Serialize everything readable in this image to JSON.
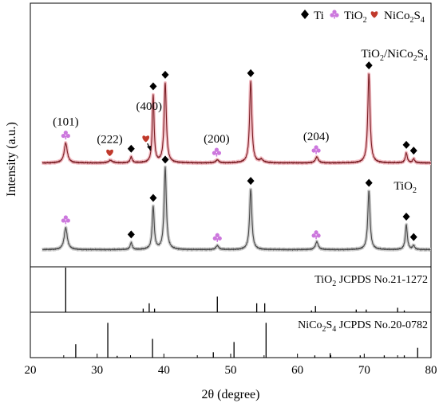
{
  "chart_data": {
    "type": "line",
    "xlabel": "2θ (degree)",
    "ylabel": "Intensity (a.u.)",
    "xlim": [
      20,
      80
    ],
    "x_ticks": [
      20,
      30,
      40,
      50,
      60,
      70,
      80
    ],
    "grid": false,
    "legend": {
      "position": "top-right",
      "entries": [
        {
          "name": "Ti",
          "marker": "diamond",
          "color": "#000000"
        },
        {
          "name": "TiO",
          "sub": "2",
          "marker": "club",
          "color": "#cc77dd"
        },
        {
          "name": "NiCo",
          "sub": "2",
          "tail": "S",
          "sub2": "4",
          "marker": "heart",
          "color": "#c0392b"
        }
      ]
    },
    "series": [
      {
        "name": "TiO2/NiCo2S4",
        "label": {
          "base": "TiO",
          "s1": "2",
          "mid": "/NiCo",
          "s2": "2",
          "mid2": "S",
          "s3": "4"
        },
        "color": "#7a1f25",
        "halo": "#f2bcc3",
        "baseline": 0.035,
        "peaks": [
          {
            "x": 25.3,
            "h": 0.2,
            "w": 0.28
          },
          {
            "x": 32.0,
            "h": 0.025,
            "w": 0.35
          },
          {
            "x": 35.1,
            "h": 0.06,
            "w": 0.18
          },
          {
            "x": 38.4,
            "h": 0.68,
            "w": 0.16
          },
          {
            "x": 40.2,
            "h": 0.8,
            "w": 0.2
          },
          {
            "x": 48.0,
            "h": 0.03,
            "w": 0.25
          },
          {
            "x": 53.0,
            "h": 0.82,
            "w": 0.2
          },
          {
            "x": 54.6,
            "h": 0.03,
            "w": 0.3
          },
          {
            "x": 62.9,
            "h": 0.06,
            "w": 0.25
          },
          {
            "x": 70.7,
            "h": 0.9,
            "w": 0.2
          },
          {
            "x": 76.3,
            "h": 0.1,
            "w": 0.18
          },
          {
            "x": 77.4,
            "h": 0.04,
            "w": 0.18
          }
        ]
      },
      {
        "name": "TiO2",
        "label": {
          "base": "TiO",
          "s1": "2"
        },
        "color": "#4a4a4a",
        "halo": "#cfcfcf",
        "baseline": 0.02,
        "peaks": [
          {
            "x": 25.3,
            "h": 0.22,
            "w": 0.28
          },
          {
            "x": 35.1,
            "h": 0.07,
            "w": 0.18
          },
          {
            "x": 38.4,
            "h": 0.43,
            "w": 0.18
          },
          {
            "x": 40.2,
            "h": 0.82,
            "w": 0.2
          },
          {
            "x": 48.0,
            "h": 0.04,
            "w": 0.25
          },
          {
            "x": 53.0,
            "h": 0.61,
            "w": 0.2
          },
          {
            "x": 62.9,
            "h": 0.08,
            "w": 0.25
          },
          {
            "x": 70.7,
            "h": 0.59,
            "w": 0.2
          },
          {
            "x": 76.3,
            "h": 0.25,
            "w": 0.18
          },
          {
            "x": 77.4,
            "h": 0.04,
            "w": 0.18
          }
        ]
      }
    ],
    "markers": [
      {
        "series": 0,
        "type": "club",
        "x": 25.3,
        "label": "(101)"
      },
      {
        "series": 0,
        "type": "heart",
        "x": 31.9,
        "label": "(222)"
      },
      {
        "series": 0,
        "type": "diamond",
        "x": 35.1
      },
      {
        "series": 0,
        "type": "heart",
        "x": 37.3,
        "label": "(400)",
        "arrow_to": 38.0
      },
      {
        "series": 0,
        "type": "diamond",
        "x": 38.4
      },
      {
        "series": 0,
        "type": "diamond",
        "x": 40.2
      },
      {
        "series": 0,
        "type": "club",
        "x": 47.9,
        "label": "(200)"
      },
      {
        "series": 0,
        "type": "diamond",
        "x": 53.0
      },
      {
        "series": 0,
        "type": "club",
        "x": 62.8,
        "label": "(204)"
      },
      {
        "series": 0,
        "type": "diamond",
        "x": 70.7
      },
      {
        "series": 0,
        "type": "diamond",
        "x": 76.3
      },
      {
        "series": 0,
        "type": "diamond",
        "x": 77.4
      },
      {
        "series": 1,
        "type": "club",
        "x": 25.3
      },
      {
        "series": 1,
        "type": "diamond",
        "x": 35.1
      },
      {
        "series": 1,
        "type": "diamond",
        "x": 38.4
      },
      {
        "series": 1,
        "type": "diamond",
        "x": 40.2
      },
      {
        "series": 1,
        "type": "club",
        "x": 48.0
      },
      {
        "series": 1,
        "type": "diamond",
        "x": 53.0
      },
      {
        "series": 1,
        "type": "club",
        "x": 62.8
      },
      {
        "series": 1,
        "type": "diamond",
        "x": 70.7
      },
      {
        "series": 1,
        "type": "diamond",
        "x": 76.3
      },
      {
        "series": 1,
        "type": "diamond",
        "x": 77.4
      }
    ],
    "references": [
      {
        "name": "TiO2 JCPDS No.21-1272",
        "label": {
          "base": "TiO",
          "s1": "2",
          "rest": " JCPDS No.21-1272"
        },
        "lines": [
          {
            "x": 25.3,
            "h": 1.0
          },
          {
            "x": 36.9,
            "h": 0.08
          },
          {
            "x": 37.8,
            "h": 0.2
          },
          {
            "x": 38.6,
            "h": 0.08
          },
          {
            "x": 48.0,
            "h": 0.35
          },
          {
            "x": 53.9,
            "h": 0.2
          },
          {
            "x": 55.1,
            "h": 0.2
          },
          {
            "x": 62.1,
            "h": 0.04
          },
          {
            "x": 62.7,
            "h": 0.14
          },
          {
            "x": 68.8,
            "h": 0.06
          },
          {
            "x": 70.3,
            "h": 0.06
          },
          {
            "x": 75.0,
            "h": 0.1
          },
          {
            "x": 76.0,
            "h": 0.04
          }
        ]
      },
      {
        "name": "NiCo2S4 JCPDS No.20-0782",
        "label": {
          "base": "NiCo",
          "s1": "2",
          "mid": "S",
          "s2": "4",
          "rest": " JCPDS No.20-0782"
        },
        "lines": [
          {
            "x": 16.3,
            "h": 0.15
          },
          {
            "x": 26.8,
            "h": 0.3
          },
          {
            "x": 31.6,
            "h": 0.78
          },
          {
            "x": 33.0,
            "h": 0.04
          },
          {
            "x": 38.3,
            "h": 0.42
          },
          {
            "x": 47.4,
            "h": 0.12
          },
          {
            "x": 50.5,
            "h": 0.35
          },
          {
            "x": 55.3,
            "h": 0.78
          },
          {
            "x": 62.6,
            "h": 0.05
          },
          {
            "x": 64.9,
            "h": 0.1
          },
          {
            "x": 69.4,
            "h": 0.05
          },
          {
            "x": 73.0,
            "h": 0.05
          },
          {
            "x": 76.0,
            "h": 0.05
          },
          {
            "x": 78.0,
            "h": 0.22
          }
        ]
      }
    ]
  }
}
